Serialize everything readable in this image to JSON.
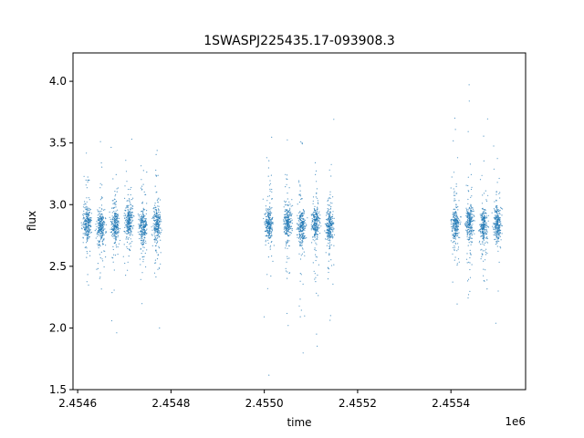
{
  "chart_data": {
    "type": "scatter",
    "title": "1SWASPJ225435.17-093908.3",
    "xlabel": "time",
    "ylabel": "flux",
    "x_offset_label": "1e6",
    "xlim": [
      2454590,
      2455560
    ],
    "ylim": [
      1.5,
      4.23
    ],
    "x_ticks": [
      2454600,
      2454800,
      2455000,
      2455200,
      2455400
    ],
    "x_tick_labels": [
      "2.4546",
      "2.4548",
      "2.4550",
      "2.4552",
      "2.4554"
    ],
    "y_ticks": [
      1.5,
      2.0,
      2.5,
      3.0,
      3.5,
      4.0
    ],
    "y_tick_labels": [
      "1.5",
      "2.0",
      "2.5",
      "3.0",
      "3.5",
      "4.0"
    ],
    "grid": false,
    "point_color": "#1f77b4",
    "series": [
      {
        "x": [
          2454620,
          2454650,
          2454680,
          2454710,
          2454740,
          2454770,
          2455010,
          2455050,
          2455080,
          2455110,
          2455140,
          2455410,
          2455440,
          2455470,
          2455500
        ],
        "y": [
          2.85,
          2.82,
          2.84,
          2.86,
          2.83,
          2.85,
          2.84,
          2.87,
          2.82,
          2.85,
          2.83,
          2.84,
          2.86,
          2.83,
          2.85
        ]
      }
    ]
  }
}
